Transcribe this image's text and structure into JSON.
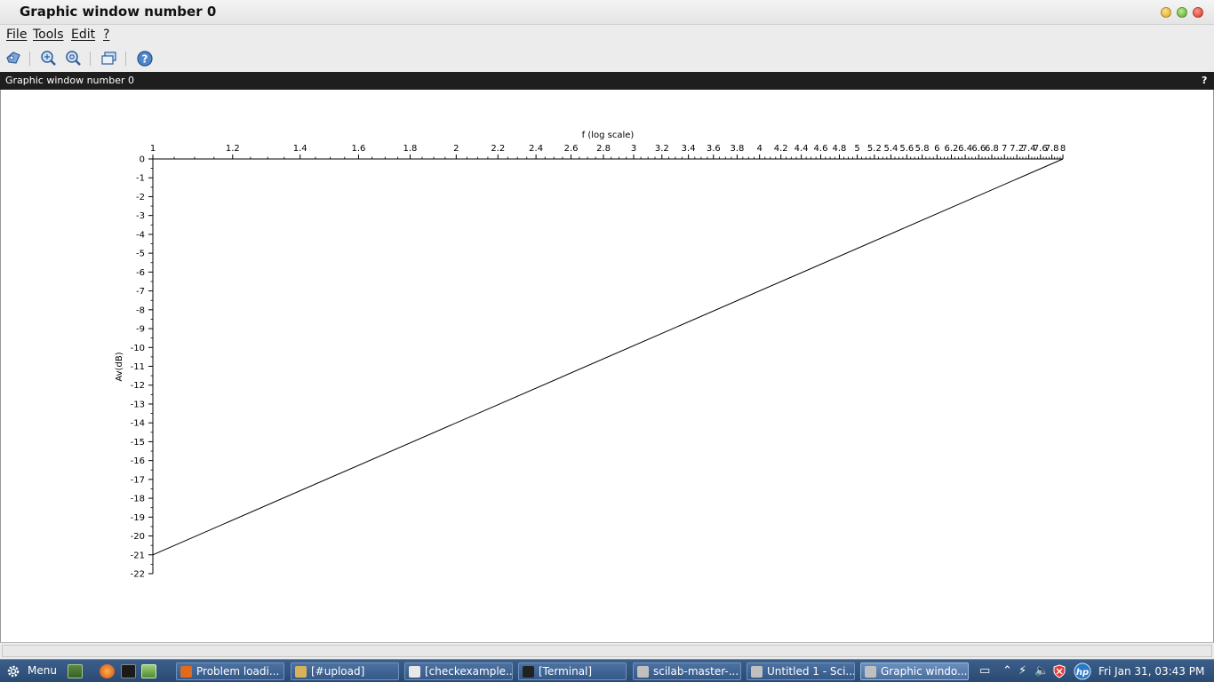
{
  "window": {
    "title": "Graphic window number 0",
    "dock_title": "Graphic window number 0",
    "dock_help": "?"
  },
  "menubar": {
    "items": [
      "File",
      "Tools",
      "Edit",
      "?"
    ]
  },
  "toolbar": {
    "icons": [
      "datatip-icon",
      "zoom-icon",
      "unzoom-icon",
      "rotate-icon",
      "help-icon"
    ]
  },
  "chart_data": {
    "type": "line",
    "title": "",
    "xlabel": "f (log scale)",
    "ylabel": "Av(dB)",
    "x_ticks": [
      "1",
      "1.2",
      "1.4",
      "1.6",
      "1.8",
      "2",
      "2.2",
      "2.4",
      "2.6",
      "2.8",
      "3",
      "3.2",
      "3.4",
      "3.6",
      "3.8",
      "4",
      "4.2",
      "4.4",
      "4.6",
      "4.8",
      "5",
      "5.2",
      "5.4",
      "5.6",
      "5.8",
      "6",
      "6.2",
      "6.4",
      "6.6",
      "6.8",
      "7",
      "7.2",
      "7.4",
      "7.6",
      "7.8",
      "8"
    ],
    "y_ticks": [
      "0",
      "-1",
      "-2",
      "-3",
      "-4",
      "-5",
      "-6",
      "-7",
      "-8",
      "-9",
      "-10",
      "-11",
      "-12",
      "-13",
      "-14",
      "-15",
      "-16",
      "-17",
      "-18",
      "-19",
      "-20",
      "-21",
      "-22"
    ],
    "xlim": [
      1,
      8
    ],
    "ylim": [
      -22,
      0
    ],
    "x_axis_position": "top",
    "series": [
      {
        "x": [
          1,
          8
        ],
        "y": [
          -21,
          0
        ]
      }
    ],
    "grid": false,
    "line_color": "#000000"
  },
  "taskbar": {
    "menu_label": "Menu",
    "tasks": [
      {
        "label": "Problem loadi...",
        "icon_color": "#e06a1e",
        "active": false
      },
      {
        "label": "[#upload]",
        "icon_color": "#d8b25a",
        "active": false
      },
      {
        "label": "[checkexample...",
        "icon_color": "#e8e8e8",
        "active": false
      },
      {
        "label": "[Terminal]",
        "icon_color": "#222222",
        "active": false
      },
      {
        "label": "scilab-master-...",
        "icon_color": "#c0c0c0",
        "active": false
      },
      {
        "label": "Untitled 1 - Sci...",
        "icon_color": "#c0c0c0",
        "active": false
      },
      {
        "label": "Graphic windo...",
        "icon_color": "#c0c0c0",
        "active": true
      }
    ],
    "clock": "Fri Jan 31, 03:43 PM"
  }
}
